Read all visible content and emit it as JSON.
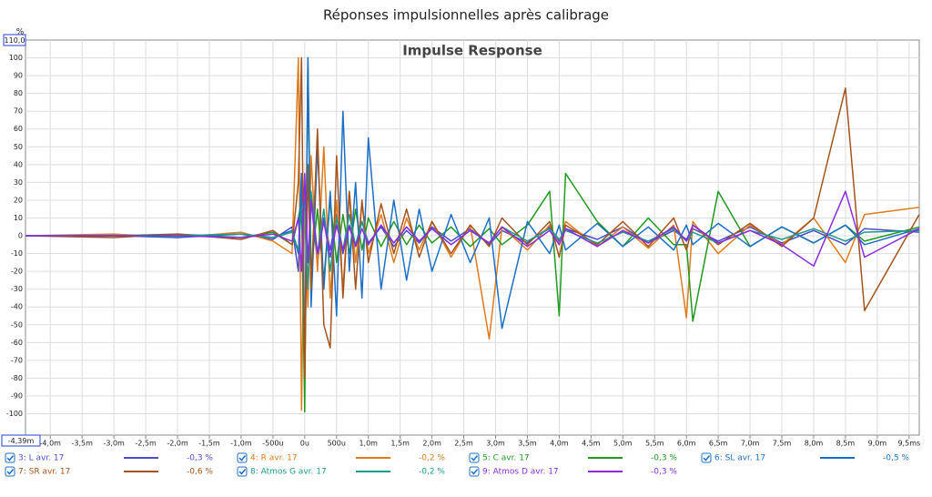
{
  "chart_data": {
    "type": "line",
    "title": "Réponses impulsionnelles après calibrage",
    "plot_title": "Impulse Response",
    "y_unit": "%",
    "y_top": {
      "value": 110,
      "label": "110,0"
    },
    "x_start": {
      "value": -4.39,
      "label": "-4,39m"
    },
    "xlim": [
      -4.39,
      9.66
    ],
    "ylim": [
      -112,
      110
    ],
    "grid": true,
    "yticks": [
      -100,
      -90,
      -80,
      -70,
      -60,
      -50,
      -40,
      -30,
      -20,
      -10,
      0,
      10,
      20,
      30,
      40,
      50,
      60,
      70,
      80,
      90,
      100
    ],
    "xticks": [
      {
        "value": -4.0,
        "label": "-4,0m"
      },
      {
        "value": -3.5,
        "label": "-3,5m"
      },
      {
        "value": -3.0,
        "label": "-3,0m"
      },
      {
        "value": -2.5,
        "label": "-2,5m"
      },
      {
        "value": -2.0,
        "label": "-2,0m"
      },
      {
        "value": -1.5,
        "label": "-1,5m"
      },
      {
        "value": -1.0,
        "label": "-1,0m"
      },
      {
        "value": -0.5,
        "label": "-500u"
      },
      {
        "value": 0,
        "label": "0u"
      },
      {
        "value": 0.5,
        "label": "500u"
      },
      {
        "value": 1.0,
        "label": "1,0m"
      },
      {
        "value": 1.5,
        "label": "1,5m"
      },
      {
        "value": 2.0,
        "label": "2,0m"
      },
      {
        "value": 2.5,
        "label": "2,5m"
      },
      {
        "value": 3.0,
        "label": "3,0m"
      },
      {
        "value": 3.5,
        "label": "3,5m"
      },
      {
        "value": 4.0,
        "label": "4,0m"
      },
      {
        "value": 4.5,
        "label": "4,5m"
      },
      {
        "value": 5.0,
        "label": "5,0m"
      },
      {
        "value": 5.5,
        "label": "5,5m"
      },
      {
        "value": 6.0,
        "label": "6,0m"
      },
      {
        "value": 6.5,
        "label": "6,5m"
      },
      {
        "value": 7.0,
        "label": "7,0m"
      },
      {
        "value": 7.5,
        "label": "7,5m"
      },
      {
        "value": 8.0,
        "label": "8,0m"
      },
      {
        "value": 8.5,
        "label": "8,5m"
      },
      {
        "value": 9.0,
        "label": "9,0m"
      },
      {
        "value": 9.5,
        "label": "9,5ms"
      }
    ],
    "x": [
      -4.39,
      -3,
      -2,
      -1,
      -0.5,
      -0.2,
      -0.1,
      -0.05,
      0,
      0.05,
      0.1,
      0.2,
      0.3,
      0.4,
      0.5,
      0.6,
      0.7,
      0.8,
      0.9,
      1.0,
      1.2,
      1.4,
      1.6,
      1.8,
      2.0,
      2.3,
      2.6,
      2.9,
      3.1,
      3.5,
      3.85,
      4.0,
      4.1,
      4.6,
      5.0,
      5.4,
      5.8,
      6.0,
      6.1,
      6.5,
      7.0,
      7.5,
      8.0,
      8.5,
      8.8,
      9.66
    ],
    "series": [
      {
        "name": "3: L avr. 17",
        "color": "#4b4bc8",
        "readout": "-0,3 %",
        "values": [
          0,
          0,
          0,
          1,
          -2,
          5,
          -20,
          35,
          10,
          -30,
          20,
          -15,
          10,
          -8,
          12,
          -10,
          6,
          -5,
          8,
          -4,
          5,
          -6,
          3,
          -4,
          5,
          -3,
          4,
          -5,
          3,
          -4,
          5,
          -3,
          4,
          -2,
          5,
          -4,
          3,
          -2,
          4,
          -3,
          5,
          -4,
          3,
          -5,
          4,
          2
        ]
      },
      {
        "name": "4: R avr. 17",
        "color": "#e07b1c",
        "readout": "-0,2 %",
        "values": [
          0,
          1,
          -1,
          2,
          -3,
          -10,
          100,
          -98,
          30,
          -40,
          45,
          -20,
          50,
          -35,
          20,
          -30,
          25,
          -15,
          18,
          -10,
          12,
          -15,
          10,
          -8,
          8,
          -12,
          6,
          -58,
          5,
          -8,
          6,
          -5,
          8,
          -6,
          5,
          -7,
          6,
          -46,
          8,
          -10,
          6,
          -5,
          10,
          -15,
          12,
          16
        ]
      },
      {
        "name": "5: C avr. 17",
        "color": "#1f9a1f",
        "readout": "-0,3 %",
        "values": [
          0,
          0,
          1,
          -1,
          2,
          -5,
          10,
          20,
          -99,
          100,
          -20,
          15,
          -25,
          20,
          -15,
          12,
          -10,
          15,
          -8,
          10,
          -6,
          8,
          -5,
          6,
          -4,
          5,
          -6,
          4,
          -5,
          6,
          25,
          -45,
          35,
          8,
          -6,
          10,
          -5,
          -5,
          -48,
          25,
          -6,
          5,
          -4,
          6,
          -3,
          5
        ]
      },
      {
        "name": "6: SL avr. 17",
        "color": "#1c6fc8",
        "readout": "-0,5 %",
        "values": [
          0,
          0,
          -1,
          1,
          -1,
          3,
          -10,
          35,
          -75,
          100,
          -40,
          50,
          -30,
          25,
          -45,
          70,
          -20,
          30,
          -35,
          55,
          -30,
          20,
          -25,
          15,
          -20,
          12,
          -15,
          10,
          -52,
          8,
          -10,
          6,
          -8,
          7,
          -6,
          5,
          -8,
          6,
          -5,
          7,
          -6,
          5,
          -4,
          6,
          -5,
          4
        ]
      },
      {
        "name": "7: SR avr. 17",
        "color": "#a5531c",
        "readout": "-0,6 %",
        "values": [
          0,
          -1,
          1,
          -2,
          3,
          -5,
          30,
          100,
          -80,
          40,
          -30,
          60,
          -50,
          -63,
          45,
          -35,
          25,
          -30,
          20,
          -15,
          18,
          -10,
          15,
          -12,
          8,
          -10,
          6,
          -6,
          10,
          -5,
          8,
          -12,
          6,
          -5,
          8,
          -6,
          10,
          -8,
          6,
          -5,
          7,
          -6,
          10,
          83,
          -42,
          12
        ]
      },
      {
        "name": "8: Atmos G avr. 17",
        "color": "#1c9a8a",
        "readout": "-0,2 %",
        "values": [
          0,
          0,
          0,
          1,
          -1,
          2,
          -8,
          15,
          20,
          -30,
          25,
          -10,
          15,
          -20,
          10,
          -8,
          12,
          -6,
          8,
          -5,
          6,
          -4,
          5,
          -3,
          4,
          -5,
          3,
          -4,
          5,
          -3,
          4,
          -2,
          3,
          -4,
          2,
          -3,
          4,
          -3,
          2,
          -4,
          3,
          -2,
          4,
          -3,
          2,
          3
        ]
      },
      {
        "name": "9: Atmos D avr. 17",
        "color": "#8a2be2",
        "readout": "-0,3 %",
        "values": [
          0,
          0,
          0,
          -1,
          1,
          -3,
          10,
          -20,
          35,
          -15,
          20,
          -10,
          8,
          -12,
          6,
          -8,
          5,
          -6,
          4,
          -5,
          6,
          -4,
          5,
          -3,
          4,
          -5,
          3,
          -4,
          5,
          -6,
          3,
          -5,
          4,
          -6,
          3,
          -4,
          5,
          -3,
          6,
          -4,
          3,
          -5,
          -17,
          25,
          -12,
          4
        ]
      }
    ]
  }
}
